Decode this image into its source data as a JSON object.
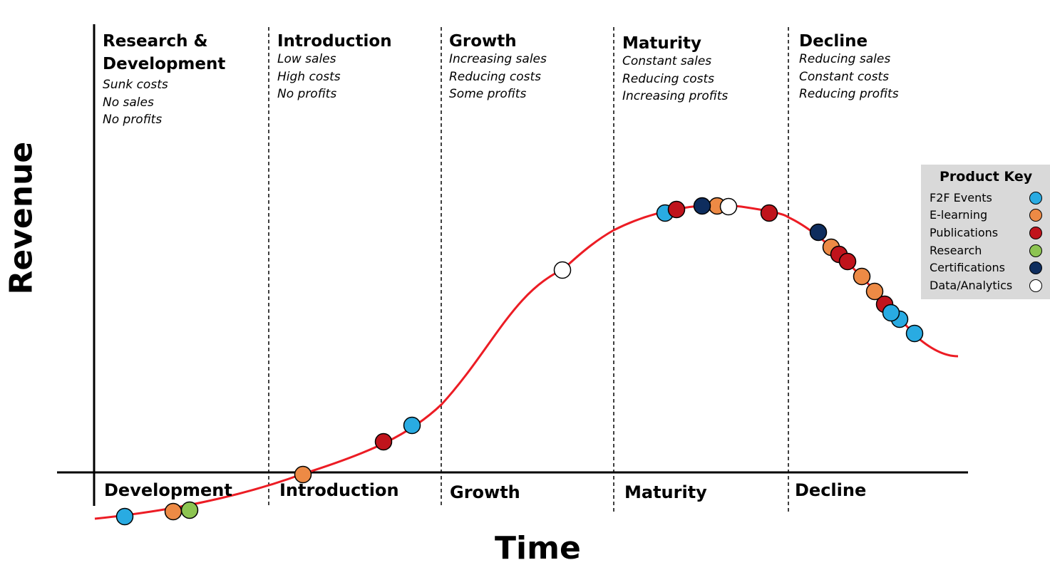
{
  "stages": [
    {
      "title": "Research &\nDevelopment",
      "notes": [
        "Sunk costs",
        "No sales",
        "No profits"
      ]
    },
    {
      "title": "Introduction",
      "notes": [
        "Low sales",
        "High costs",
        "No profits"
      ]
    },
    {
      "title": "Growth",
      "notes": [
        "Increasing sales",
        "Reducing costs",
        "Some profits"
      ]
    },
    {
      "title": "Maturity",
      "notes": [
        "Constant sales",
        "Reducing costs",
        "Increasing profits"
      ]
    },
    {
      "title": "Decline",
      "notes": [
        "Reducing sales",
        "Constant costs",
        "Reducing profits"
      ]
    }
  ],
  "axis_phases": [
    "Development",
    "Introduction",
    "Growth",
    "Maturity",
    "Decline"
  ],
  "axis": {
    "x_title": "Time",
    "y_title": "Revenue"
  },
  "legend": {
    "title": "Product Key",
    "items": [
      {
        "label": "F2F Events",
        "color": "#29abe2"
      },
      {
        "label": "E-learning",
        "color": "#ed8a45"
      },
      {
        "label": "Publications",
        "color": "#c0141c"
      },
      {
        "label": "Research",
        "color": "#8dc451"
      },
      {
        "label": "Certifications",
        "color": "#0e2d5e"
      },
      {
        "label": "Data/Analytics",
        "color": "#ffffff"
      }
    ]
  },
  "curve_color": "#ec1c24"
}
